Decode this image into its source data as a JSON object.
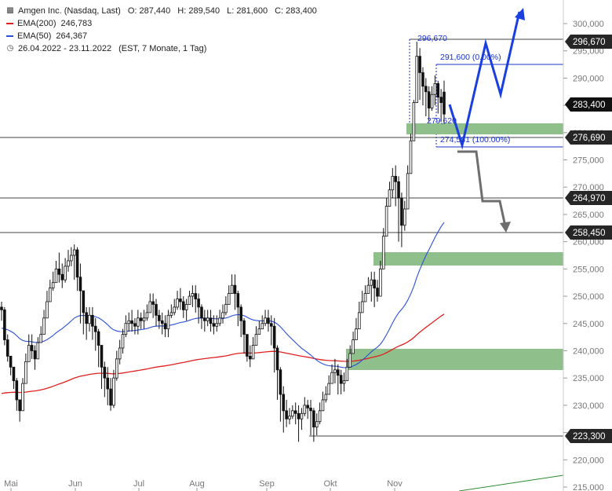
{
  "legend": {
    "instrument": "Amgen Inc. (Nasdaq, Last)",
    "open": "O: 287,440",
    "high": "H: 289,540",
    "low": "L: 281,600",
    "close": "C: 283,400",
    "ema200_label": "EMA(200)",
    "ema200_value": "246,783",
    "ema50_label": "EMA(50)",
    "ema50_value": "264,367",
    "range": "26.04.2022 - 23.11.2022",
    "range_info": "(EST, 7 Monate, 1 Tag)"
  },
  "colors": {
    "ema200": "#e02020",
    "ema50": "#2a4fd6",
    "zone": "#8fbf8a",
    "scenario_up": "#1a3fe0",
    "scenario_down": "#6e6e6e",
    "candle": "#111111",
    "tag_bg": "#262626",
    "trend_line": "#2e8b2e"
  },
  "chart_data": {
    "type": "candlestick",
    "x_labels": [
      "Mai",
      "Jun",
      "Jul",
      "Aug",
      "Sep",
      "Okt",
      "Nov"
    ],
    "ylim": [
      215000,
      304000
    ],
    "y_ticks": [
      "300,000",
      "295,000",
      "290,000",
      "285,000",
      "280,000",
      "275,000",
      "270,000",
      "265,000",
      "260,000",
      "255,000",
      "250,000",
      "245,000",
      "240,000",
      "235,000",
      "230,000",
      "225,000",
      "220,000",
      "215,000"
    ],
    "y_tick_values": [
      300000,
      295000,
      290000,
      285000,
      280000,
      275000,
      270000,
      265000,
      260000,
      255000,
      250000,
      245000,
      240000,
      235000,
      230000,
      225000,
      220000,
      215000
    ],
    "closes": [
      247.5,
      242,
      239,
      237,
      234.5,
      231,
      229,
      234,
      238,
      241,
      240,
      238.5,
      241.5,
      243,
      246,
      249,
      251.5,
      252.5,
      255,
      254,
      253,
      255.5,
      256.5,
      257.5,
      258.5,
      253.5,
      251,
      247,
      245,
      246.5,
      244.5,
      243.5,
      241,
      237,
      235,
      233,
      230,
      235,
      238.5,
      240.5,
      243,
      245,
      245.5,
      245,
      244.5,
      246,
      245.5,
      246,
      247,
      249,
      248.5,
      246.5,
      245.5,
      245,
      244,
      246.5,
      247,
      248,
      249.5,
      249,
      247.5,
      248.5,
      250,
      250.5,
      249.5,
      248,
      246,
      245.5,
      246,
      245,
      244.5,
      245,
      246,
      247,
      248.5,
      250.5,
      252,
      250.5,
      248,
      245.5,
      243,
      239,
      238.5,
      241,
      243,
      244,
      245,
      246,
      245,
      244.5,
      240.5,
      236.5,
      232,
      229,
      227.5,
      228,
      229,
      228.5,
      227.5,
      228.5,
      230,
      229.5,
      229,
      226,
      227,
      229,
      231,
      232,
      234,
      236,
      236.5,
      235.5,
      234,
      234.5,
      237,
      239.5,
      242,
      244,
      247,
      249,
      250.5,
      252,
      253,
      251.5,
      250,
      255,
      261,
      266.5,
      269.5,
      272,
      271,
      268,
      263,
      266,
      272.5,
      278.5,
      285.5,
      294,
      291,
      288.5,
      287.5,
      284.5,
      287,
      289,
      286.5,
      285.5,
      283.4
    ],
    "highs": [
      249,
      248,
      243,
      239,
      237,
      235,
      231,
      235,
      239.5,
      243,
      243,
      241,
      242.5,
      244.5,
      247.5,
      251,
      253,
      254.5,
      256.5,
      258,
      256,
      257,
      258.5,
      259,
      259.5,
      259,
      256,
      250,
      248,
      248,
      248,
      246,
      244,
      241,
      238,
      237,
      235,
      236.5,
      240,
      242,
      244,
      246.5,
      247,
      247.5,
      246,
      247.5,
      247,
      247.5,
      248.5,
      250.5,
      250.5,
      249.5,
      247.5,
      247,
      246.5,
      247.5,
      248.5,
      249.5,
      251,
      251.5,
      250,
      249.5,
      251,
      252,
      252,
      250.5,
      248.5,
      247.5,
      247.5,
      247.5,
      246.5,
      246.5,
      247.5,
      248.5,
      250,
      252,
      254,
      254,
      251,
      248.5,
      246,
      243,
      241,
      242.5,
      244.5,
      245.5,
      246.5,
      247.5,
      247.5,
      246.5,
      246,
      241,
      237,
      233.5,
      231,
      229.5,
      230,
      230.5,
      230,
      229.5,
      231.5,
      231,
      231,
      229.5,
      228.5,
      230.5,
      232.5,
      233.5,
      235.5,
      237.5,
      238.5,
      237.5,
      236.5,
      236,
      238.5,
      241,
      243.5,
      246,
      249,
      251,
      252,
      253.5,
      254.5,
      254.5,
      253,
      256.5,
      262.5,
      268,
      271,
      273.5,
      274,
      272,
      269,
      267.5,
      274,
      279.8,
      286,
      296.67,
      295.5,
      292,
      290,
      288.5,
      288.5,
      290.5,
      289.5,
      288,
      289.54
    ],
    "lows": [
      245.5,
      241,
      238,
      235.5,
      233,
      229,
      227,
      230.5,
      234.5,
      239,
      238.5,
      236.5,
      238.5,
      241.5,
      243,
      248,
      250,
      251,
      253.5,
      252.5,
      251.5,
      252.5,
      254.5,
      255.5,
      253,
      251,
      245,
      243,
      242,
      243.5,
      242,
      240,
      237,
      233,
      231.5,
      230,
      229,
      229.5,
      234.5,
      237.5,
      239.5,
      242.5,
      243.5,
      243.5,
      243,
      243,
      244,
      244,
      245.5,
      247.5,
      246,
      244.5,
      244,
      243,
      242.5,
      242.5,
      246,
      246.5,
      247.5,
      247.5,
      246,
      245.5,
      248.5,
      248,
      247,
      245,
      244,
      243.5,
      244.5,
      243.5,
      243,
      243.5,
      244.5,
      245,
      246.5,
      249,
      250.5,
      247.5,
      244.5,
      242.5,
      239.5,
      238,
      237,
      239,
      241.5,
      243,
      244,
      244.5,
      243.5,
      241,
      236,
      231,
      227,
      225,
      226,
      226.5,
      227.5,
      226.5,
      223.3,
      225.5,
      228,
      227.5,
      224.5,
      223.3,
      224.5,
      226.5,
      229.5,
      230.5,
      232.5,
      234.5,
      234,
      232,
      232,
      232.5,
      235,
      238,
      240.5,
      242.5,
      245.5,
      247.5,
      249,
      250.5,
      249,
      248,
      249,
      253.5,
      259,
      264.5,
      267.5,
      268,
      266.5,
      260,
      259,
      262,
      270.5,
      276,
      283,
      289,
      286,
      285,
      283,
      282,
      284,
      285,
      283.5,
      282,
      281.6
    ]
  },
  "tags": {
    "price_296670": "296,670",
    "price_283400": "283,400",
    "price_276690": "276,690",
    "price_264970": "264,970",
    "price_258450": "258,450",
    "price_223300": "223,300"
  },
  "annotations": {
    "fib_high": "296,670",
    "fib_0": "291,600 (0.00%)",
    "fib_low": "279,620",
    "fib_100": "274,581 (100.00%)"
  }
}
